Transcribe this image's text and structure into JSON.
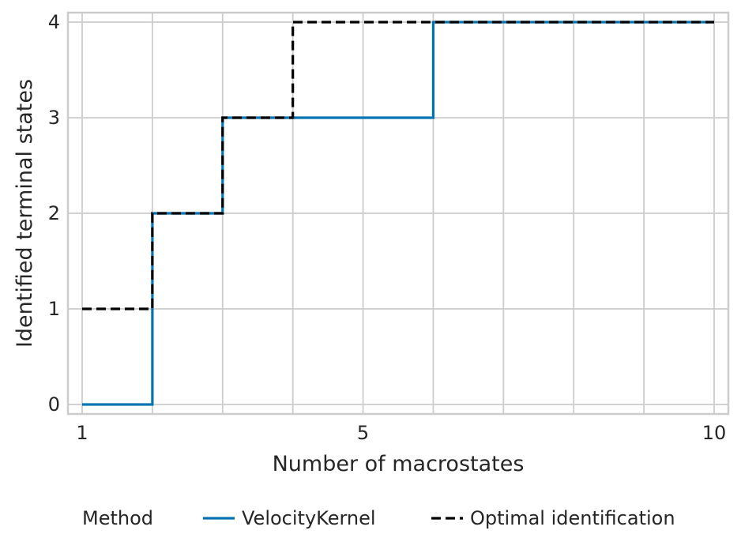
{
  "chart_data": {
    "type": "line",
    "step": "post",
    "xlabel": "Number of macrostates",
    "ylabel": "Identified terminal states",
    "xlim": [
      1,
      10
    ],
    "ylim": [
      0,
      4
    ],
    "x_ticks": [
      1,
      5,
      10
    ],
    "x_gridlines": [
      1,
      2,
      3,
      4,
      5,
      6,
      7,
      8,
      9,
      10
    ],
    "y_ticks": [
      0,
      1,
      2,
      3,
      4
    ],
    "grid": true,
    "legend": {
      "placement": "bottom-center",
      "title": "Method"
    },
    "series": [
      {
        "name": "VelocityKernel",
        "color": "#0173b2",
        "linestyle": "solid",
        "x": [
          1,
          2,
          3,
          4,
          5,
          6,
          7,
          8,
          9,
          10
        ],
        "y": [
          0,
          2,
          3,
          3,
          3,
          4,
          4,
          4,
          4,
          4
        ]
      },
      {
        "name": "Optimal identification",
        "color": "#000000",
        "linestyle": "dashed",
        "x": [
          1,
          2,
          3,
          4,
          5,
          6,
          7,
          8,
          9,
          10
        ],
        "y": [
          1,
          2,
          3,
          4,
          4,
          4,
          4,
          4,
          4,
          4
        ]
      }
    ]
  }
}
